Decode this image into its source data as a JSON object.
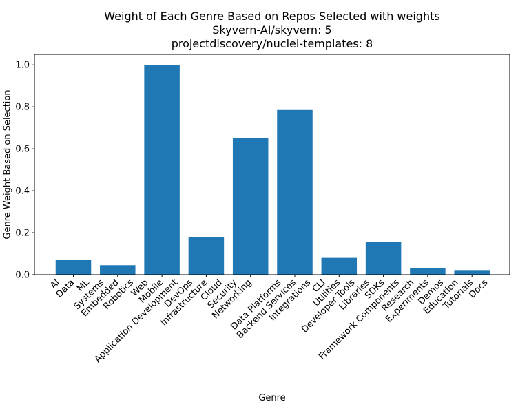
{
  "chart_data": {
    "type": "bar",
    "title_lines": [
      "Weight of Each Genre Based on Repos Selected with weights",
      "Skyvern-AI/skyvern: 5",
      "projectdiscovery/nuclei-templates: 8"
    ],
    "xlabel": "Genre",
    "ylabel": "Genre Weight Based on Selection",
    "ylim": [
      0,
      1.05
    ],
    "yticks": [
      0.0,
      0.2,
      0.4,
      0.6,
      0.8,
      1.0
    ],
    "ytick_labels": [
      "0.0",
      "0.2",
      "0.4",
      "0.6",
      "0.8",
      "1.0"
    ],
    "bar_color": "#1f77b4",
    "groups": [
      {
        "labels": [
          "AI",
          "Data",
          "ML"
        ],
        "value": 0.07
      },
      {
        "labels": [
          "Systems",
          "Embedded",
          "Robotics"
        ],
        "value": 0.045
      },
      {
        "labels": [
          "Web",
          "Mobile",
          "Application Development"
        ],
        "value": 1.0
      },
      {
        "labels": [
          "DevOps",
          "Infrastructure",
          "Cloud"
        ],
        "value": 0.18
      },
      {
        "labels": [
          "Security",
          "Networking"
        ],
        "value": 0.65
      },
      {
        "labels": [
          "Data Platforms",
          "Backend Services",
          "Integrations"
        ],
        "value": 0.785
      },
      {
        "labels": [
          "CLI",
          "Utilities",
          "Developer Tools"
        ],
        "value": 0.08
      },
      {
        "labels": [
          "Libraries",
          "SDKs",
          "Framework Components"
        ],
        "value": 0.155
      },
      {
        "labels": [
          "Research",
          "Experiments",
          "Demos"
        ],
        "value": 0.03
      },
      {
        "labels": [
          "Education",
          "Tutorials",
          "Docs"
        ],
        "value": 0.022
      }
    ],
    "grid": false,
    "legend": "none"
  }
}
